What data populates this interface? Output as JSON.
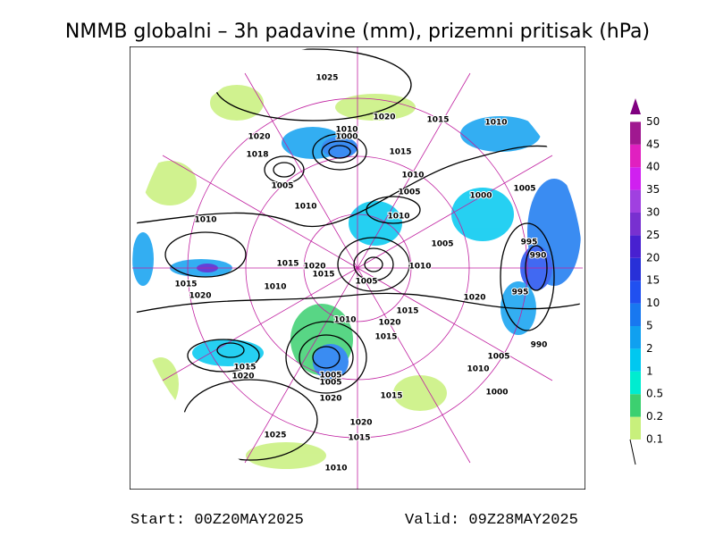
{
  "header": {
    "title": "NMMB globalni – 3h padavine (mm), prizemni pritisak (hPa)"
  },
  "legend": {
    "levels": [
      {
        "label": "0.1",
        "color": "#c8f07c"
      },
      {
        "label": "0.2",
        "color": "#3cd070"
      },
      {
        "label": "0.5",
        "color": "#00ecd0"
      },
      {
        "label": "1",
        "color": "#00c8f0"
      },
      {
        "label": "2",
        "color": "#10a0f0"
      },
      {
        "label": "5",
        "color": "#1878f0"
      },
      {
        "label": "10",
        "color": "#2050f0"
      },
      {
        "label": "15",
        "color": "#2830d8"
      },
      {
        "label": "20",
        "color": "#4820d0"
      },
      {
        "label": "25",
        "color": "#7830d0"
      },
      {
        "label": "30",
        "color": "#a040e0"
      },
      {
        "label": "35",
        "color": "#d020f0"
      },
      {
        "label": "40",
        "color": "#e020c0"
      },
      {
        "label": "45",
        "color": "#a01890"
      },
      {
        "label": "50",
        "color": "#800080"
      }
    ]
  },
  "map": {
    "isobar_labels": [
      "1025",
      "1020",
      "1015",
      "1010",
      "1010",
      "1000",
      "1020",
      "1018",
      "1005",
      "1015",
      "1010",
      "1005",
      "1010",
      "1010",
      "1000",
      "1005",
      "1010",
      "1005",
      "995",
      "990",
      "1015",
      "1020",
      "1010",
      "1015",
      "1005",
      "1015",
      "1010",
      "1020",
      "1020",
      "995",
      "1015",
      "1010",
      "1020",
      "1015",
      "990",
      "1005",
      "1015",
      "1020",
      "1010",
      "1005",
      "1005",
      "1000",
      "1020",
      "1015",
      "1020",
      "1025",
      "1015",
      "1010"
    ]
  },
  "footer": {
    "start": "Start: 00Z20MAY2025",
    "valid": "Valid: 09Z28MAY2025"
  }
}
